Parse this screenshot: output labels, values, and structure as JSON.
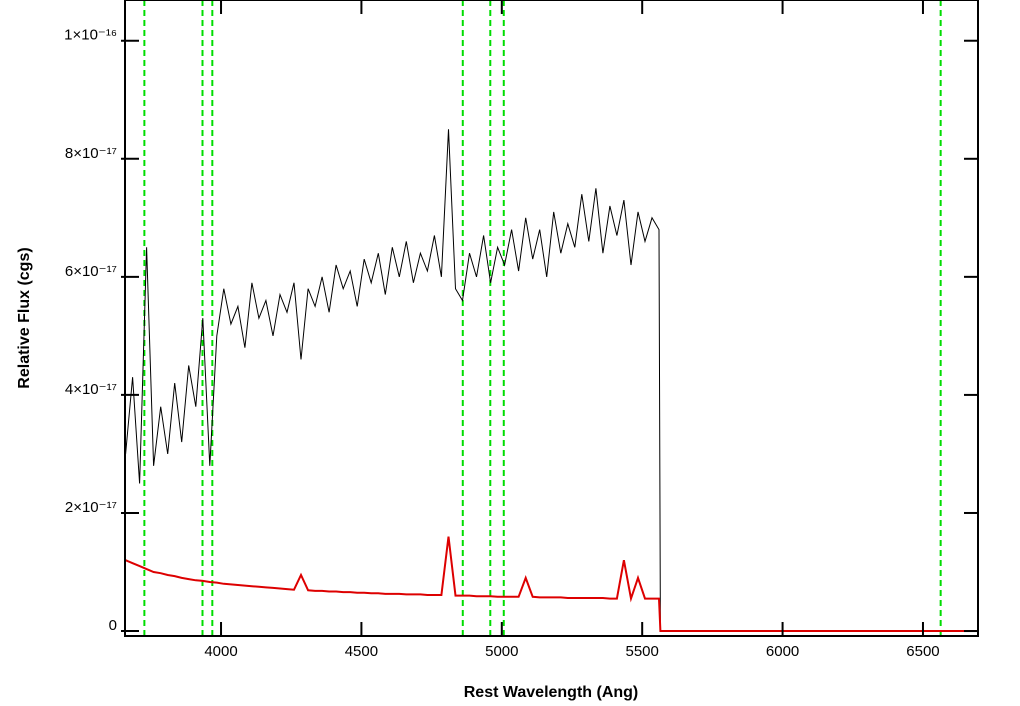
{
  "chart_data": {
    "type": "line",
    "x_label": "Rest Wavelength (Ang)",
    "y_label": "Relative Flux (cgs)",
    "xlim": [
      3658,
      6696
    ],
    "ylim": [
      -8.4e-19,
      1.069e-16
    ],
    "xticks": [
      4000,
      4500,
      5000,
      5500,
      6000,
      6500
    ],
    "yticks": [
      0,
      {
        "value": 2e-17,
        "label": "2×10⁻¹⁷"
      },
      {
        "value": 4e-17,
        "label": "4×10⁻¹⁷"
      },
      {
        "value": 6e-17,
        "label": "6×10⁻¹⁷"
      },
      {
        "value": 8e-17,
        "label": "8×10⁻¹⁷"
      },
      {
        "value": 1e-16,
        "label": "1×10⁻¹⁶"
      }
    ],
    "vlines": [
      3727,
      3934,
      3969,
      4861,
      4959,
      5007,
      6563
    ],
    "vline_color": "#00dd00",
    "x": [
      3660,
      3685,
      3710,
      3735,
      3760,
      3785,
      3810,
      3835,
      3860,
      3885,
      3910,
      3935,
      3960,
      3985,
      4010,
      4035,
      4060,
      4085,
      4110,
      4135,
      4160,
      4185,
      4210,
      4235,
      4260,
      4285,
      4310,
      4335,
      4360,
      4385,
      4410,
      4435,
      4460,
      4485,
      4510,
      4535,
      4560,
      4585,
      4610,
      4635,
      4660,
      4685,
      4710,
      4735,
      4760,
      4785,
      4810,
      4835,
      4860,
      4885,
      4910,
      4935,
      4960,
      4985,
      5010,
      5035,
      5060,
      5085,
      5110,
      5135,
      5160,
      5185,
      5210,
      5235,
      5260,
      5285,
      5310,
      5335,
      5360,
      5385,
      5410,
      5435,
      5460,
      5485,
      5510,
      5535,
      5560,
      5565,
      6690
    ],
    "series": [
      {
        "color": "#000000",
        "values": [
          3e-17,
          4.3e-17,
          2.5e-17,
          6.5e-17,
          2.8e-17,
          3.8e-17,
          3e-17,
          4.2e-17,
          3.2e-17,
          4.5e-17,
          3.8e-17,
          5.3e-17,
          2.8e-17,
          5e-17,
          5.8e-17,
          5.2e-17,
          5.5e-17,
          4.8e-17,
          5.9e-17,
          5.3e-17,
          5.6e-17,
          5e-17,
          5.7e-17,
          5.4e-17,
          5.9e-17,
          4.6e-17,
          5.8e-17,
          5.5e-17,
          6e-17,
          5.4e-17,
          6.2e-17,
          5.8e-17,
          6.1e-17,
          5.5e-17,
          6.3e-17,
          5.9e-17,
          6.4e-17,
          5.7e-17,
          6.5e-17,
          6e-17,
          6.6e-17,
          5.9e-17,
          6.4e-17,
          6.1e-17,
          6.7e-17,
          6e-17,
          8.5e-17,
          5.8e-17,
          5.6e-17,
          6.4e-17,
          6e-17,
          6.7e-17,
          5.9e-17,
          6.5e-17,
          6.2e-17,
          6.8e-17,
          6.1e-17,
          7e-17,
          6.3e-17,
          6.8e-17,
          6e-17,
          7.1e-17,
          6.4e-17,
          6.9e-17,
          6.5e-17,
          7.4e-17,
          6.6e-17,
          7.5e-17,
          6.4e-17,
          7.2e-17,
          6.7e-17,
          7.3e-17,
          6.2e-17,
          7.1e-17,
          6.6e-17,
          7e-17,
          6.8e-17,
          0,
          null
        ]
      },
      {
        "color": "#dd0000",
        "values": [
          1.2e-17,
          1.15e-17,
          1.1e-17,
          1.05e-17,
          1e-17,
          9.8e-18,
          9.5e-18,
          9.3e-18,
          9e-18,
          8.8e-18,
          8.6e-18,
          8.5e-18,
          8.3e-18,
          8.2e-18,
          8e-18,
          7.9e-18,
          7.8e-18,
          7.7e-18,
          7.6e-18,
          7.5e-18,
          7.4e-18,
          7.3e-18,
          7.2e-18,
          7.1e-18,
          7e-18,
          9.5e-18,
          6.9e-18,
          6.8e-18,
          6.8e-18,
          6.7e-18,
          6.7e-18,
          6.6e-18,
          6.6e-18,
          6.5e-18,
          6.5e-18,
          6.4e-18,
          6.4e-18,
          6.3e-18,
          6.3e-18,
          6.3e-18,
          6.2e-18,
          6.2e-18,
          6.2e-18,
          6.1e-18,
          6.1e-18,
          6.1e-18,
          1.6e-17,
          6e-18,
          6e-18,
          6e-18,
          5.9e-18,
          5.9e-18,
          5.9e-18,
          5.8e-18,
          5.8e-18,
          5.8e-18,
          5.8e-18,
          9e-18,
          5.8e-18,
          5.7e-18,
          5.7e-18,
          5.7e-18,
          5.7e-18,
          5.6e-18,
          5.6e-18,
          5.6e-18,
          5.6e-18,
          5.6e-18,
          5.6e-18,
          5.5e-18,
          5.5e-18,
          1.2e-17,
          5.5e-18,
          9e-18,
          5.5e-18,
          5.5e-18,
          5.5e-18,
          0,
          0
        ]
      }
    ]
  }
}
